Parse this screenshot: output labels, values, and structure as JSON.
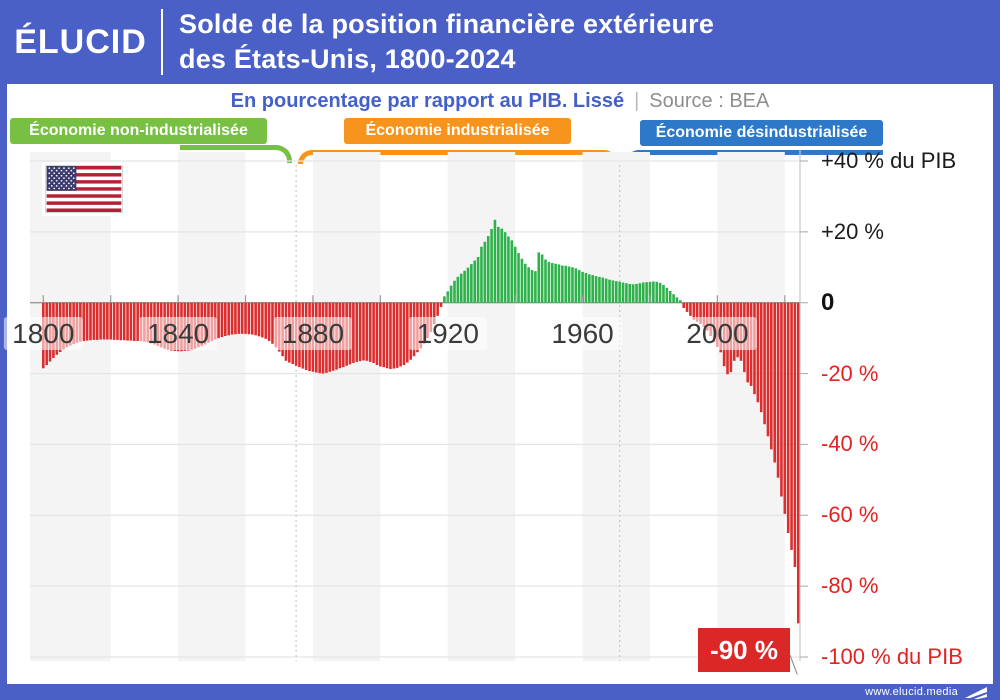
{
  "header": {
    "logo": "ÉLUCID",
    "title_line1": "Solde de la position financière extérieure",
    "title_line2": "des États-Unis, 1800-2024"
  },
  "subtitle": {
    "measure": "En pourcentage par rapport au PIB. Lissé",
    "separator": "|",
    "source": "Source : BEA"
  },
  "eras": [
    {
      "label": "Économie non-industrialisée",
      "color": "#77c044"
    },
    {
      "label": "Économie industrialisée",
      "color": "#f7941e"
    },
    {
      "label": "Économie désindustrialisée",
      "color": "#2d78c9"
    }
  ],
  "footer": {
    "url": "www.elucid.media"
  },
  "colors": {
    "frame_blue": "#4a60c6",
    "bar_red": "#dc2e2e",
    "bar_green": "#2eb24b",
    "axis_red": "#e32222",
    "axis_black": "#1c1c1c",
    "grid": "#e5e5e5",
    "zero_line": "#999999",
    "stripe": "#f4f4f5",
    "dashed": "#c9c9c9",
    "annotation_red": "#dc2727"
  },
  "chart_data": {
    "type": "bar",
    "title": "Solde de la position financière extérieure des États-Unis, 1800-2024",
    "subtitle": "En pourcentage par rapport au PIB. Lissé",
    "source": "BEA",
    "unit": "% du PIB",
    "start_year": 1800,
    "end_year": 2024,
    "ylim": [
      -100,
      40
    ],
    "x_tick_years": [
      1800,
      1840,
      1880,
      1920,
      1960,
      2000
    ],
    "minor_tick_step_years": 20,
    "y_ticks": [
      {
        "value": 40,
        "label": "+40 % du PIB",
        "color": "#1c1c1c",
        "bold": false
      },
      {
        "value": 20,
        "label": "+20 %",
        "color": "#1c1c1c",
        "bold": false
      },
      {
        "value": 0,
        "label": "0",
        "color": "#111111",
        "bold": true
      },
      {
        "value": -20,
        "label": "-20 %",
        "color": "#e32222",
        "bold": false
      },
      {
        "value": -40,
        "label": "-40 %",
        "color": "#e32222",
        "bold": false
      },
      {
        "value": -60,
        "label": "-60 %",
        "color": "#e32222",
        "bold": false
      },
      {
        "value": -80,
        "label": "-80 %",
        "color": "#e32222",
        "bold": false
      },
      {
        "value": -100,
        "label": "-100 % du PIB",
        "color": "#e32222",
        "bold": false
      }
    ],
    "era_divider_years": [
      1875,
      1971
    ],
    "stripe_bands_years": [
      [
        1796,
        1820
      ],
      [
        1840,
        1860
      ],
      [
        1880,
        1900
      ],
      [
        1920,
        1940
      ],
      [
        1960,
        1980
      ],
      [
        2000,
        2020
      ]
    ],
    "annotation": {
      "year": 2024,
      "value": -90,
      "label": "-90 %"
    },
    "values": [
      -18.5,
      -17.6,
      -16.6,
      -15.6,
      -14.7,
      -13.9,
      -13.2,
      -12.6,
      -12.1,
      -11.7,
      -11.3,
      -11.0,
      -10.8,
      -10.7,
      -10.6,
      -10.5,
      -10.5,
      -10.4,
      -10.4,
      -10.4,
      -10.4,
      -10.5,
      -10.5,
      -10.6,
      -10.6,
      -10.7,
      -10.7,
      -10.8,
      -10.8,
      -10.9,
      -11.0,
      -11.2,
      -11.5,
      -11.8,
      -12.2,
      -12.6,
      -13.0,
      -13.3,
      -13.5,
      -13.6,
      -13.7,
      -13.7,
      -13.6,
      -13.5,
      -13.3,
      -13.0,
      -12.6,
      -12.2,
      -11.8,
      -11.3,
      -10.8,
      -10.4,
      -10.0,
      -9.7,
      -9.4,
      -9.2,
      -9.0,
      -8.9,
      -8.8,
      -8.8,
      -8.8,
      -8.9,
      -9.0,
      -9.2,
      -9.5,
      -9.8,
      -10.2,
      -10.8,
      -11.6,
      -12.6,
      -13.8,
      -15.1,
      -16.4,
      -16.9,
      -17.3,
      -17.8,
      -18.2,
      -18.6,
      -19.0,
      -19.3,
      -19.5,
      -19.7,
      -19.9,
      -20.0,
      -19.8,
      -19.5,
      -19.2,
      -18.9,
      -18.5,
      -18.2,
      -17.8,
      -17.4,
      -17.0,
      -16.7,
      -16.5,
      -16.3,
      -16.4,
      -16.7,
      -17.0,
      -17.6,
      -18.0,
      -18.2,
      -18.5,
      -18.7,
      -18.6,
      -18.4,
      -18.0,
      -17.6,
      -16.9,
      -16.1,
      -15.1,
      -14.0,
      -12.9,
      -11.6,
      -10.0,
      -8.3,
      -6.0,
      -3.7,
      -1.2,
      1.8,
      3.2,
      4.8,
      6.2,
      7.3,
      8.2,
      9.0,
      9.9,
      10.9,
      11.9,
      12.9,
      15.8,
      17.2,
      18.8,
      20.8,
      23.4,
      21.4,
      20.9,
      19.9,
      18.7,
      17.6,
      15.8,
      14.0,
      12.4,
      11.0,
      10.0,
      9.2,
      8.9,
      14.2,
      13.6,
      12.2,
      11.5,
      11.2,
      11.0,
      10.8,
      10.5,
      10.4,
      10.2,
      10.0,
      9.7,
      9.2,
      8.7,
      8.4,
      8.0,
      7.8,
      7.5,
      7.3,
      7.1,
      6.8,
      6.5,
      6.3,
      6.1,
      5.9,
      5.7,
      5.5,
      5.3,
      5.2,
      5.3,
      5.5,
      5.7,
      5.8,
      5.9,
      6.0,
      5.9,
      5.6,
      5.0,
      4.2,
      3.3,
      2.4,
      1.5,
      0.7,
      -1.5,
      -2.6,
      -3.7,
      -4.8,
      -5.4,
      -6.0,
      -6.8,
      -7.9,
      -9.4,
      -11.1,
      -12.5,
      -14.0,
      -17.9,
      -20.2,
      -19.6,
      -16.4,
      -15.4,
      -16.4,
      -19.6,
      -22.5,
      -23.5,
      -25.8,
      -28.1,
      -30.9,
      -34.3,
      -37.7,
      -41.4,
      -45.1,
      -49.4,
      -54.7,
      -59.6,
      -65.0,
      -69.8,
      -74.6,
      -90.5
    ]
  }
}
